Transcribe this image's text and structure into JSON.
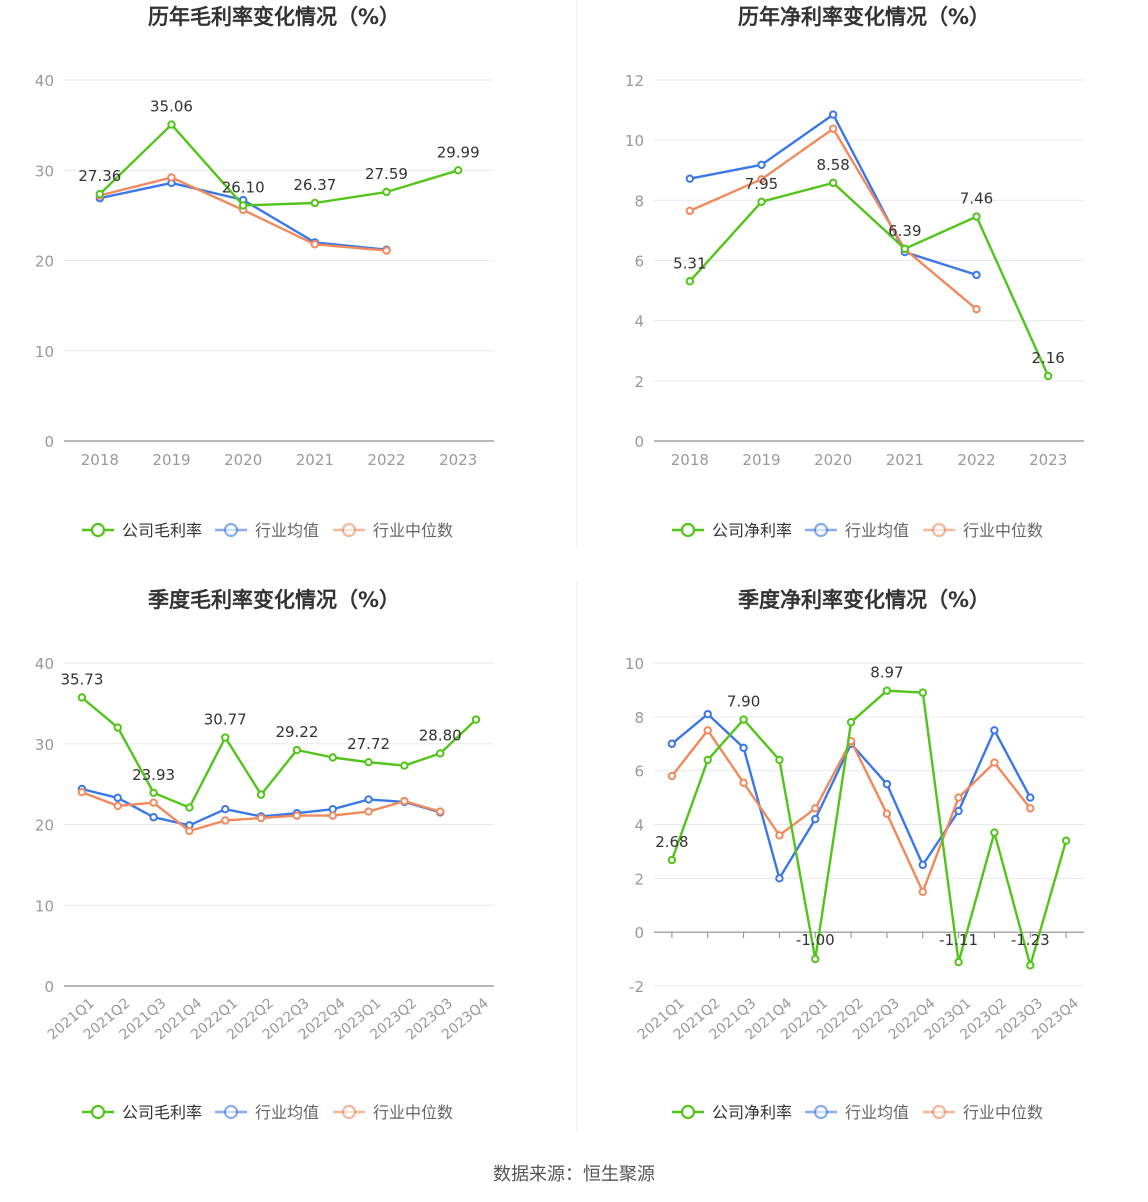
{
  "source": "数据来源：恒生聚源",
  "colors": {
    "company": "#52c41a",
    "avg": "#3b78e7",
    "median": "#f08a5d",
    "grid": "#e6e9f0",
    "axis": "#999999",
    "text": "#333333"
  },
  "chart_data": [
    {
      "type": "line",
      "title": "历年毛利率变化情况（%）",
      "categories": [
        "2018",
        "2019",
        "2020",
        "2021",
        "2022",
        "2023"
      ],
      "ylim": [
        0,
        40
      ],
      "yticks": [
        0,
        10,
        20,
        30,
        40
      ],
      "tick_marks": false,
      "rotate_labels": false,
      "series": [
        {
          "name": "公司毛利率",
          "key": "company",
          "values": [
            27.36,
            35.06,
            26.1,
            26.37,
            27.59,
            29.99
          ],
          "labels": [
            "27.36",
            "35.06",
            "26.10",
            "26.37",
            "27.59",
            "29.99"
          ]
        },
        {
          "name": "行业均值",
          "key": "avg",
          "values": [
            26.9,
            28.6,
            26.7,
            22.0,
            21.2,
            null
          ]
        },
        {
          "name": "行业中位数",
          "key": "median",
          "values": [
            27.2,
            29.2,
            25.6,
            21.8,
            21.1,
            null
          ]
        }
      ]
    },
    {
      "type": "line",
      "title": "历年净利率变化情况（%）",
      "categories": [
        "2018",
        "2019",
        "2020",
        "2021",
        "2022",
        "2023"
      ],
      "ylim": [
        0,
        12
      ],
      "yticks": [
        0,
        2,
        4,
        6,
        8,
        10,
        12
      ],
      "tick_marks": false,
      "rotate_labels": false,
      "series": [
        {
          "name": "公司净利率",
          "key": "company",
          "values": [
            5.31,
            7.95,
            8.58,
            6.39,
            7.46,
            2.16
          ],
          "labels": [
            "5.31",
            "7.95",
            "8.58",
            "6.39",
            "7.46",
            "2.16"
          ]
        },
        {
          "name": "行业均值",
          "key": "avg",
          "values": [
            8.72,
            9.18,
            10.85,
            6.28,
            5.52,
            null
          ]
        },
        {
          "name": "行业中位数",
          "key": "median",
          "values": [
            7.65,
            8.7,
            10.38,
            6.38,
            4.38,
            null
          ]
        }
      ]
    },
    {
      "type": "line",
      "title": "季度毛利率变化情况（%）",
      "categories": [
        "2021Q1",
        "2021Q2",
        "2021Q3",
        "2021Q4",
        "2022Q1",
        "2022Q2",
        "2022Q3",
        "2022Q4",
        "2023Q1",
        "2023Q2",
        "2023Q3",
        "2023Q4"
      ],
      "ylim": [
        0,
        40
      ],
      "yticks": [
        0,
        10,
        20,
        30,
        40
      ],
      "tick_marks": false,
      "rotate_labels": true,
      "series": [
        {
          "name": "公司毛利率",
          "key": "company",
          "values": [
            35.73,
            32.0,
            23.93,
            22.1,
            30.77,
            23.7,
            29.22,
            28.3,
            27.72,
            27.3,
            28.8,
            33.0
          ],
          "labels": [
            "35.73",
            "",
            "23.93",
            "",
            "30.77",
            "",
            "29.22",
            "",
            "27.72",
            "",
            "28.80",
            ""
          ]
        },
        {
          "name": "行业均值",
          "key": "avg",
          "values": [
            24.4,
            23.3,
            20.9,
            19.9,
            21.9,
            21.0,
            21.4,
            21.9,
            23.1,
            22.8,
            21.5,
            null
          ]
        },
        {
          "name": "行业中位数",
          "key": "median",
          "values": [
            24.0,
            22.3,
            22.7,
            19.2,
            20.5,
            20.8,
            21.1,
            21.1,
            21.6,
            22.9,
            21.6,
            null
          ]
        }
      ]
    },
    {
      "type": "line",
      "title": "季度净利率变化情况（%）",
      "categories": [
        "2021Q1",
        "2021Q2",
        "2021Q3",
        "2021Q4",
        "2022Q1",
        "2022Q2",
        "2022Q3",
        "2022Q4",
        "2023Q1",
        "2023Q2",
        "2023Q3",
        "2023Q4"
      ],
      "ylim": [
        -2,
        10
      ],
      "yticks": [
        -2,
        0,
        2,
        4,
        6,
        8,
        10
      ],
      "tick_marks": true,
      "rotate_labels": true,
      "series": [
        {
          "name": "公司净利率",
          "key": "company",
          "values": [
            2.68,
            6.4,
            7.9,
            6.4,
            -1.0,
            7.8,
            8.97,
            8.9,
            -1.11,
            3.7,
            -1.23,
            3.4
          ],
          "labels": [
            "2.68",
            "",
            "7.90",
            "",
            "-1.00",
            "",
            "8.97",
            "",
            "-1.11",
            "",
            "-1.23",
            ""
          ]
        },
        {
          "name": "行业均值",
          "key": "avg",
          "values": [
            7.0,
            8.1,
            6.85,
            2.0,
            4.2,
            7.0,
            5.5,
            2.5,
            4.5,
            7.5,
            5.0,
            null
          ]
        },
        {
          "name": "行业中位数",
          "key": "median",
          "values": [
            5.8,
            7.5,
            5.55,
            3.6,
            4.6,
            7.1,
            4.4,
            1.5,
            5.0,
            6.3,
            4.6,
            null
          ]
        }
      ]
    }
  ]
}
